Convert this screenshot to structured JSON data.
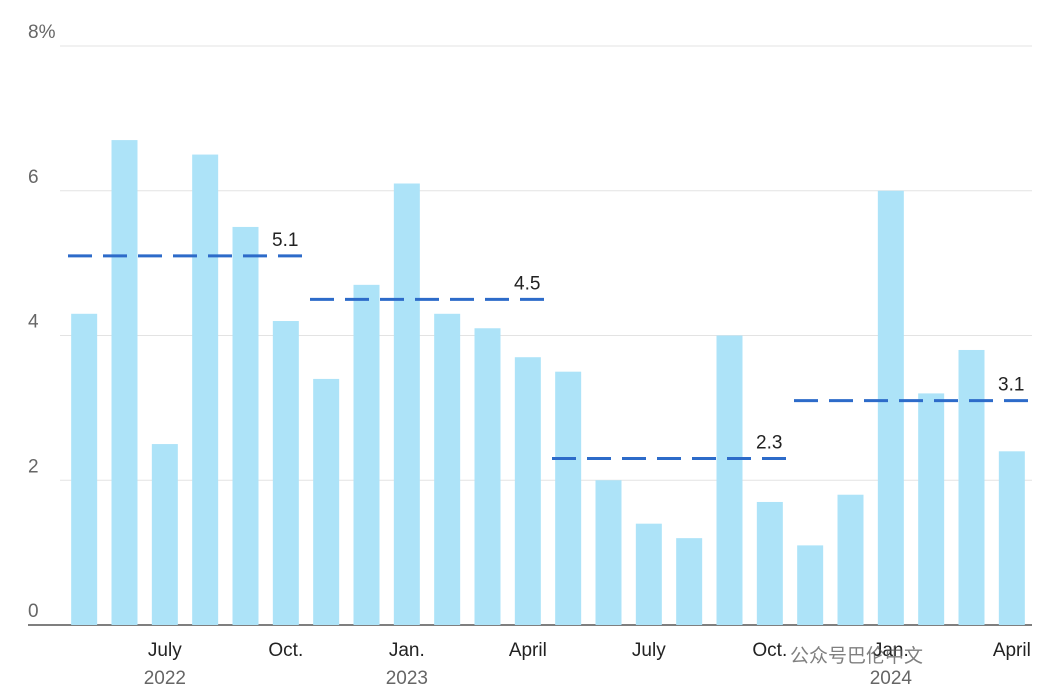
{
  "chart_data": {
    "type": "bar",
    "categories": [
      null,
      null,
      "July",
      null,
      null,
      "Oct.",
      null,
      null,
      "Jan.",
      null,
      null,
      "April",
      null,
      null,
      "July",
      null,
      null,
      "Oct.",
      null,
      null,
      "Jan.",
      null,
      null,
      "April"
    ],
    "year_labels": [
      null,
      null,
      "2022",
      null,
      null,
      null,
      null,
      null,
      "2023",
      null,
      null,
      null,
      null,
      null,
      null,
      null,
      null,
      null,
      null,
      null,
      "2024",
      null,
      null,
      null
    ],
    "values": [
      4.3,
      6.7,
      2.5,
      6.5,
      5.5,
      4.2,
      3.4,
      4.7,
      6.1,
      4.3,
      4.1,
      3.7,
      3.5,
      2.0,
      1.4,
      1.2,
      4.0,
      1.7,
      1.1,
      1.8,
      6.0,
      3.2,
      3.8,
      2.4
    ],
    "color": "#ade3f8",
    "averages": {
      "values": [
        5.1,
        4.5,
        2.3,
        3.1
      ],
      "color": "#2d6bc9"
    },
    "ylim": [
      0,
      8
    ],
    "yticks": [
      0,
      2,
      4,
      6,
      {
        "value": 8,
        "label": "8%"
      }
    ],
    "grid": true,
    "watermark": "公众号巴伦中文"
  }
}
